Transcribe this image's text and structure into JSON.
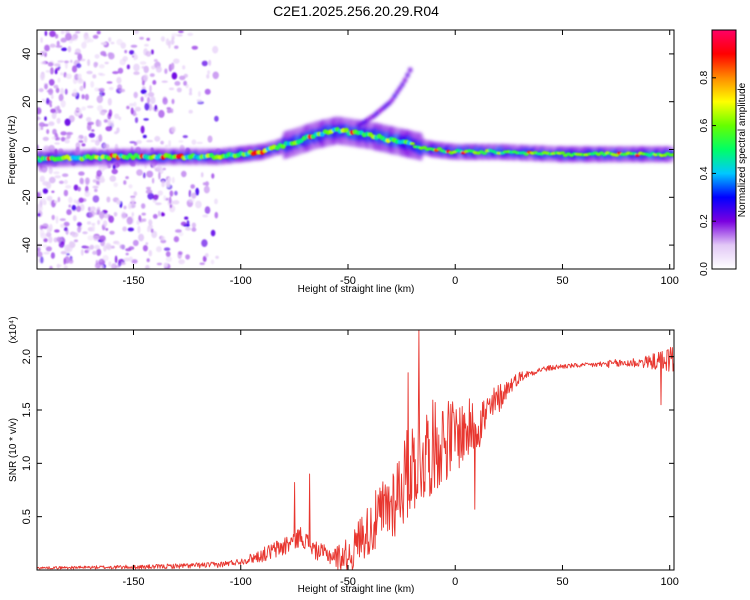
{
  "title": "C2E1.2025.256.20.29.R04",
  "chart_data": [
    {
      "type": "heatmap",
      "name": "spectrogram",
      "xlabel": "Height of straight line (km)",
      "ylabel": "Frequency (Hz)",
      "xlim": [
        -195,
        102
      ],
      "ylim": [
        -50,
        50
      ],
      "xticks": [
        -150,
        -100,
        -50,
        0,
        50,
        100
      ],
      "yticks": [
        -40,
        -20,
        0,
        20,
        40
      ],
      "colorbar": {
        "label": "Normalized spectral amplitude",
        "range": [
          0,
          1
        ],
        "ticks": [
          "0.0",
          "0.2",
          "0.4",
          "0.6",
          "0.8"
        ],
        "stops": [
          "#ffffff",
          "#e2c8f6",
          "#7a00e0",
          "#0000ff",
          "#00c8ff",
          "#00ff66",
          "#66ff00",
          "#ffff00",
          "#ff8c00",
          "#ff0000",
          "#ff0066"
        ]
      },
      "ridge": {
        "x": [
          -195,
          -150,
          -110,
          -90,
          -75,
          -65,
          -55,
          -40,
          -30,
          -20,
          -10,
          0,
          20,
          50,
          90,
          102
        ],
        "freq": [
          -4,
          -3,
          -3,
          -1,
          3,
          6,
          8,
          6,
          4,
          2,
          0,
          -1,
          -1,
          -2,
          -2,
          -2
        ]
      },
      "branch": {
        "x": [
          -45,
          -38,
          -30,
          -24,
          -20
        ],
        "freq": [
          10,
          14,
          20,
          28,
          35
        ]
      }
    },
    {
      "type": "line",
      "name": "snr",
      "xlabel": "Height of straight line (km)",
      "ylabel": "SNR (10 * v/v)",
      "y_multiplier": "(x10⁴)",
      "xlim": [
        -195,
        102
      ],
      "ylim": [
        0,
        2.25
      ],
      "xticks": [
        -150,
        -100,
        -50,
        0,
        50,
        100
      ],
      "yticks": [
        0.5,
        1.0,
        1.5,
        2.0
      ],
      "ytick_labels": [
        "0.5",
        "1.0",
        "1.5",
        "2.0"
      ],
      "color": "#e8362f",
      "envelope": {
        "x": [
          -195,
          -140,
          -110,
          -100,
          -90,
          -80,
          -72,
          -65,
          -55,
          -48,
          -45,
          -40,
          -35,
          -30,
          -25,
          -20,
          -15,
          -10,
          -5,
          0,
          5,
          10,
          15,
          20,
          25,
          30,
          40,
          50,
          60,
          70,
          80,
          90,
          95,
          100,
          102
        ],
        "y": [
          0.02,
          0.03,
          0.05,
          0.08,
          0.14,
          0.22,
          0.32,
          0.18,
          0.12,
          0.15,
          0.3,
          0.38,
          0.5,
          0.62,
          0.8,
          0.98,
          1.08,
          1.16,
          1.22,
          1.26,
          1.3,
          1.36,
          1.46,
          1.6,
          1.72,
          1.81,
          1.88,
          1.91,
          1.92,
          1.93,
          1.94,
          1.95,
          1.96,
          1.98,
          1.98
        ]
      },
      "noise": {
        "x": [
          -195,
          -100,
          -80,
          -60,
          -45,
          -35,
          -25,
          -15,
          -5,
          5,
          15,
          25,
          35,
          60,
          90,
          102
        ],
        "amp": [
          0.01,
          0.03,
          0.1,
          0.08,
          0.2,
          0.32,
          0.42,
          0.48,
          0.4,
          0.3,
          0.22,
          0.08,
          0.03,
          0.02,
          0.06,
          0.14
        ]
      },
      "spikes": [
        {
          "x": -75,
          "y": 0.82
        },
        {
          "x": -68,
          "y": 0.9
        },
        {
          "x": -17,
          "y": 2.25
        },
        {
          "x": -22,
          "y": 1.85
        },
        {
          "x": 9,
          "y": 0.57
        },
        {
          "x": 96,
          "y": 1.55
        }
      ]
    }
  ]
}
